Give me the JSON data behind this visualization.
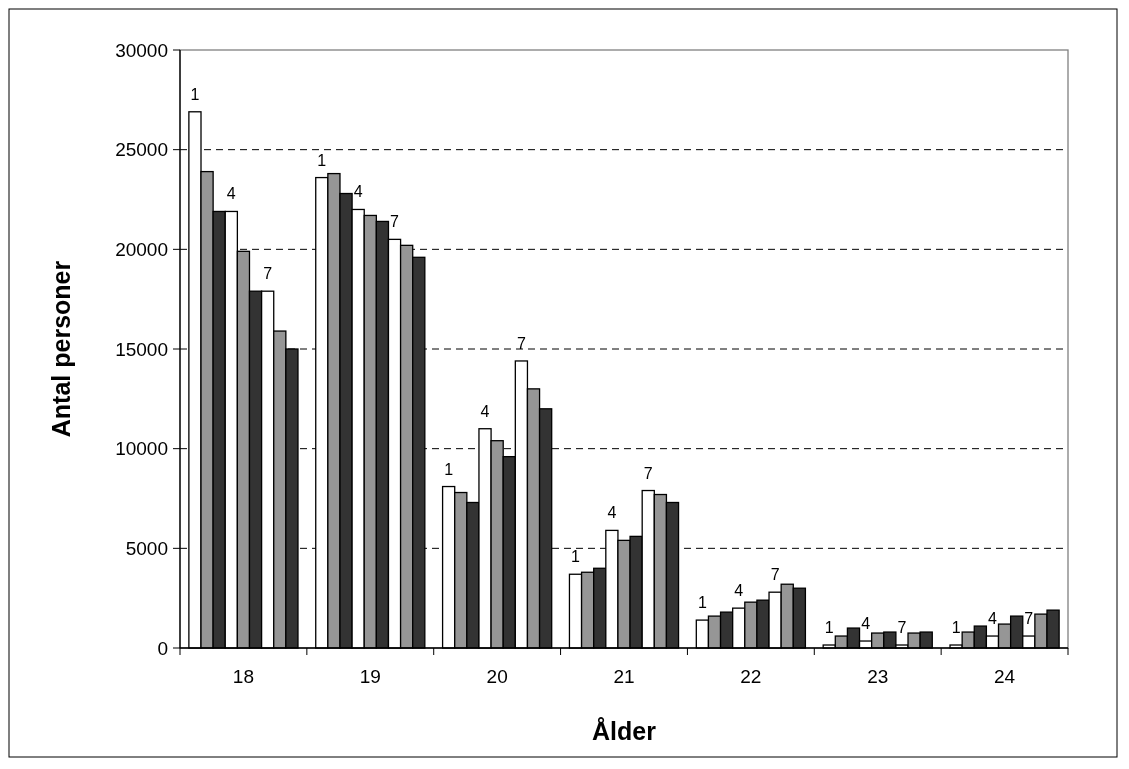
{
  "chart_data": {
    "type": "bar",
    "xlabel": "Ålder",
    "ylabel": "Antal personer",
    "categories": [
      "18",
      "19",
      "20",
      "21",
      "22",
      "23",
      "24"
    ],
    "ylim": [
      0,
      30000
    ],
    "yticks": [
      0,
      5000,
      10000,
      15000,
      20000,
      25000,
      30000
    ],
    "grid": "y",
    "series": [
      {
        "name": "1",
        "color": "#ffffff",
        "values": [
          26900,
          23600,
          8100,
          3700,
          1400,
          150,
          150
        ]
      },
      {
        "color": "#969696",
        "values": [
          23900,
          23800,
          7800,
          3800,
          1600,
          600,
          800
        ]
      },
      {
        "color": "#333333",
        "values": [
          21900,
          22800,
          7300,
          4000,
          1800,
          1000,
          1100
        ]
      },
      {
        "name": "4",
        "color": "#ffffff",
        "values": [
          21900,
          22000,
          11000,
          5900,
          2000,
          350,
          600
        ]
      },
      {
        "color": "#969696",
        "values": [
          19900,
          21700,
          10400,
          5400,
          2300,
          750,
          1200
        ]
      },
      {
        "color": "#333333",
        "values": [
          17900,
          21400,
          9600,
          5600,
          2400,
          800,
          1600
        ]
      },
      {
        "name": "7",
        "color": "#ffffff",
        "values": [
          17900,
          20500,
          14400,
          7900,
          2800,
          150,
          600
        ]
      },
      {
        "color": "#969696",
        "values": [
          15900,
          20200,
          13000,
          7700,
          3200,
          750,
          1700
        ]
      },
      {
        "color": "#333333",
        "values": [
          15000,
          19600,
          12000,
          7300,
          3000,
          800,
          1900
        ]
      }
    ]
  }
}
